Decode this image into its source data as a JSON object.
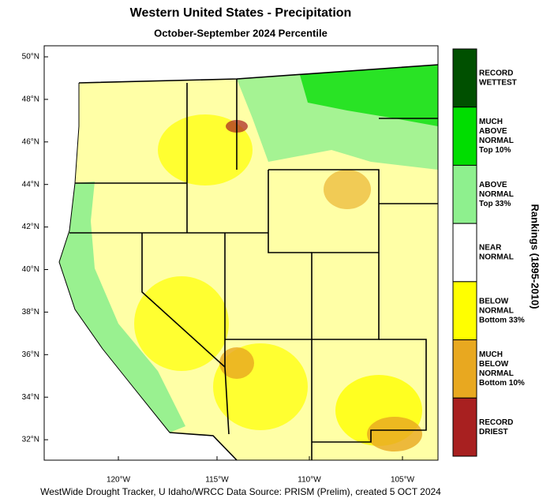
{
  "title": "Western United States - Precipitation",
  "subtitle": "October-September 2024 Percentile",
  "lat_labels": [
    "50°N",
    "48°N",
    "46°N",
    "44°N",
    "42°N",
    "40°N",
    "38°N",
    "36°N",
    "34°N",
    "32°N"
  ],
  "lon_labels": [
    "120°W",
    "115°W",
    "110°W",
    "105°W"
  ],
  "legend": {
    "title": "Rankings (1895-2010)",
    "items": [
      {
        "lines": [
          "RECORD",
          "WETTEST"
        ],
        "color": "#005000"
      },
      {
        "lines": [
          "MUCH",
          "ABOVE",
          "NORMAL",
          "Top 10%"
        ],
        "color": "#00dd00"
      },
      {
        "lines": [
          "ABOVE",
          "NORMAL",
          "Top 33%"
        ],
        "color": "#8ef08e"
      },
      {
        "lines": [
          "NEAR",
          "NORMAL"
        ],
        "color": "#ffffff"
      },
      {
        "lines": [
          "BELOW",
          "NORMAL",
          "Bottom 33%"
        ],
        "color": "#ffff00"
      },
      {
        "lines": [
          "MUCH",
          "BELOW",
          "NORMAL",
          "Bottom 10%"
        ],
        "color": "#e8a820"
      },
      {
        "lines": [
          "RECORD",
          "DRIEST"
        ],
        "color": "#a82020"
      }
    ]
  },
  "footer": "WestWide Drought Tracker, U Idaho/WRCC Data Source: PRISM (Prelim), created  5 OCT 2024"
}
